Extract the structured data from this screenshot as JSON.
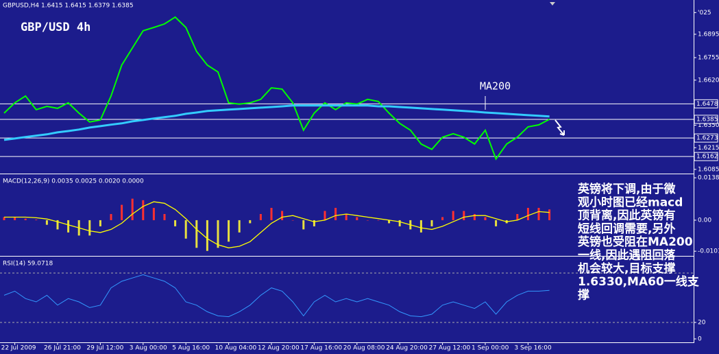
{
  "chart_data": [
    {
      "type": "line",
      "header": "GBPUSD,H4  1.6415 1.6415 1.6379 1.6385",
      "title": "GBP/USD 4h",
      "annotation": "MA200",
      "ylim": [
        1.6064,
        1.7051
      ],
      "yticks": [
        {
          "value": 1.7025,
          "label": "'025"
        },
        1.6895,
        1.6755,
        {
          "value": 1.662,
          "label": "1.6620"
        },
        {
          "value": 1.635,
          "label": "1.6350"
        },
        1.6215,
        1.6085
      ],
      "levels": [
        1.6478,
        1.6385,
        1.6273,
        1.6162
      ],
      "series": [
        {
          "color": "#00ff00",
          "values": [
            1.6422,
            1.6484,
            1.6525,
            1.6443,
            1.6463,
            1.6451,
            1.6484,
            1.6422,
            1.6369,
            1.6381,
            1.6525,
            1.671,
            1.6813,
            1.6916,
            1.6936,
            1.6957,
            1.6998,
            1.6936,
            1.6792,
            1.671,
            1.6669,
            1.6484,
            1.6476,
            1.6484,
            1.6505,
            1.6574,
            1.6566,
            1.6484,
            1.632,
            1.6422,
            1.6484,
            1.6443,
            1.6484,
            1.6476,
            1.6505,
            1.6492,
            1.6422,
            1.6361,
            1.632,
            1.6237,
            1.6205,
            1.6278,
            1.6299,
            1.6278,
            1.6237,
            1.632,
            1.6147,
            1.6237,
            1.6278,
            1.634,
            1.6352,
            1.6385
          ]
        },
        {
          "color": "#33ccff",
          "values": [
            1.6262,
            1.627,
            1.6279,
            1.6287,
            1.6295,
            1.6307,
            1.6315,
            1.6324,
            1.6336,
            1.6344,
            1.6353,
            1.6361,
            1.6373,
            1.6381,
            1.639,
            1.6398,
            1.6406,
            1.6418,
            1.6426,
            1.6435,
            1.6439,
            1.6443,
            1.6447,
            1.6451,
            1.6455,
            1.6459,
            1.6463,
            1.6468,
            1.6468,
            1.6468,
            1.6468,
            1.6468,
            1.6468,
            1.6468,
            1.6468,
            1.6463,
            1.6463,
            1.6459,
            1.6455,
            1.6451,
            1.6447,
            1.6443,
            1.6439,
            1.6435,
            1.6431,
            1.6426,
            1.6422,
            1.6418,
            1.6414,
            1.641,
            1.6406,
            1.6402
          ]
        }
      ]
    },
    {
      "type": "bar",
      "header": "MACD(12,26,9) 0.0035 0.0025 0.0020 0.0000",
      "ylim": [
        -0.0114,
        0.0145
      ],
      "yticks": [
        0.0138,
        {
          "value": 0,
          "label": "0.00"
        },
        -0.0101
      ],
      "up_color": "#ff3030",
      "down_color": "#e8e040",
      "values": [
        0.001,
        0.001,
        0.0005,
        0.0002,
        -0.0015,
        -0.003,
        -0.004,
        -0.005,
        -0.005,
        -0.002,
        0.002,
        0.005,
        0.007,
        0.0065,
        0.004,
        0.002,
        -0.002,
        -0.006,
        -0.009,
        -0.01,
        -0.009,
        -0.007,
        -0.004,
        -0.001,
        0.002,
        0.004,
        0.003,
        0,
        -0.003,
        -0.002,
        0.003,
        0.004,
        0.002,
        0.001,
        0,
        0,
        -0.001,
        -0.002,
        -0.003,
        -0.004,
        -0.002,
        0.001,
        0.003,
        0.003,
        0.002,
        0.001,
        -0.002,
        -0.001,
        0.002,
        0.004,
        0.004,
        0.0035
      ],
      "signal": {
        "color": "#ffff00",
        "values": [
          0.001,
          0.001,
          0.001,
          0.0008,
          0.0004,
          -0.0005,
          -0.0015,
          -0.0025,
          -0.0035,
          -0.004,
          -0.003,
          -0.001,
          0.002,
          0.0045,
          0.006,
          0.0055,
          0.0035,
          0.0005,
          -0.003,
          -0.006,
          -0.008,
          -0.009,
          -0.0085,
          -0.007,
          -0.004,
          -0.001,
          0.001,
          0.0015,
          0.0005,
          -0.0005,
          0,
          0.0015,
          0.002,
          0.0015,
          0.001,
          0.0005,
          0,
          -0.0005,
          -0.0015,
          -0.0025,
          -0.003,
          -0.002,
          -0.0005,
          0.001,
          0.0015,
          0.0015,
          0.0005,
          -0.0005,
          0,
          0.0015,
          0.0028,
          0.0025
        ]
      },
      "note_lines": [
        "英镑将下调,由于微",
        "观小时图已经macd",
        "顶背离,因此英镑有",
        "短线回调需要,另外",
        "英镑也受阻在MA200",
        "一线,因此遇阻回落",
        "机会较大,目标支撑",
        "1.6330,MA60一线支",
        "撑"
      ]
    },
    {
      "type": "line",
      "header": "RSI(14) 59.0718",
      "ylim": [
        0,
        100
      ],
      "yticks": [
        20,
        0
      ],
      "levels": [
        80,
        20
      ],
      "series": [
        {
          "color": "#3399ff",
          "values": [
            53,
            58,
            49,
            45,
            53,
            41,
            49,
            45,
            38,
            41,
            62,
            70,
            74,
            78,
            74,
            70,
            62,
            45,
            41,
            33,
            28,
            27,
            33,
            41,
            53,
            62,
            58,
            45,
            28,
            45,
            53,
            45,
            49,
            45,
            49,
            45,
            41,
            33,
            28,
            27,
            30,
            41,
            45,
            41,
            37,
            45,
            30,
            45,
            53,
            58,
            58,
            59
          ]
        }
      ],
      "categories": [
        null,
        "22 Jul 2009",
        null,
        null,
        null,
        "26 Jul 21:00",
        null,
        null,
        null,
        "29 Jul 12:00",
        null,
        null,
        null,
        "3 Aug 00:00",
        null,
        null,
        null,
        "5 Aug 16:00",
        null,
        null,
        null,
        "10 Aug 04:00",
        null,
        null,
        null,
        "12 Aug 20:00",
        null,
        null,
        null,
        "17 Aug 16:00",
        null,
        null,
        null,
        "20 Aug 08:00",
        null,
        null,
        null,
        "24 Aug 20:00",
        null,
        null,
        null,
        "27 Aug 12:00",
        null,
        null,
        null,
        "1 Sep 00:00",
        null,
        null,
        null,
        "3 Sep 16:00",
        null,
        null
      ]
    }
  ]
}
